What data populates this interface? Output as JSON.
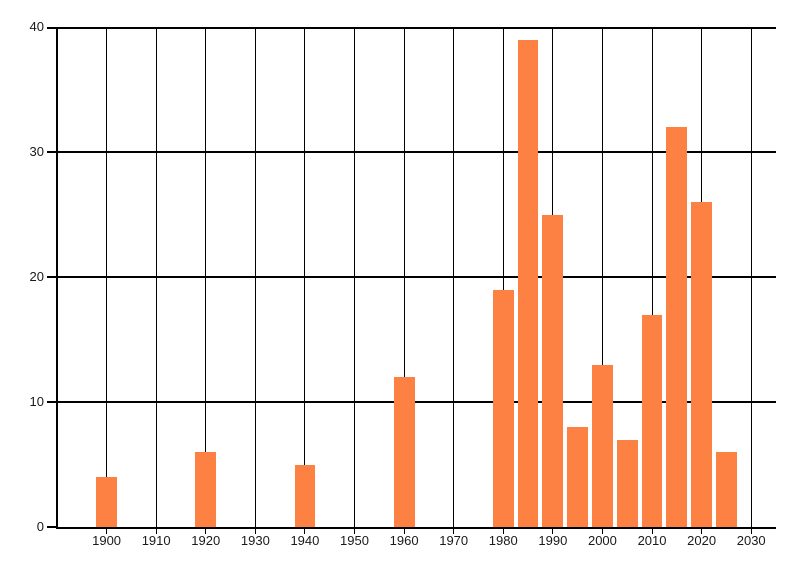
{
  "chart_data": {
    "type": "bar",
    "title": "",
    "xlabel": "",
    "ylabel": "",
    "x": [
      1900,
      1920,
      1940,
      1960,
      1980,
      1985,
      1990,
      1995,
      2000,
      2005,
      2010,
      2015,
      2020,
      2025
    ],
    "values": [
      4,
      6,
      5,
      12,
      19,
      39,
      25,
      8,
      13,
      7,
      17,
      32,
      26,
      6
    ],
    "bar_width_years": 4.2,
    "xlim": [
      1890,
      2035
    ],
    "ylim": [
      0,
      40
    ],
    "x_ticks": [
      1900,
      1910,
      1920,
      1930,
      1940,
      1950,
      1960,
      1970,
      1980,
      1990,
      2000,
      2010,
      2020,
      2030
    ],
    "y_ticks": [
      0,
      10,
      20,
      30,
      40
    ],
    "grid": true,
    "legend": null,
    "colors": {
      "bar": "#FC8142",
      "grid": "#000000",
      "axis": "#000000",
      "text": "#1A1A1A",
      "background": "#FFFFFF"
    }
  }
}
